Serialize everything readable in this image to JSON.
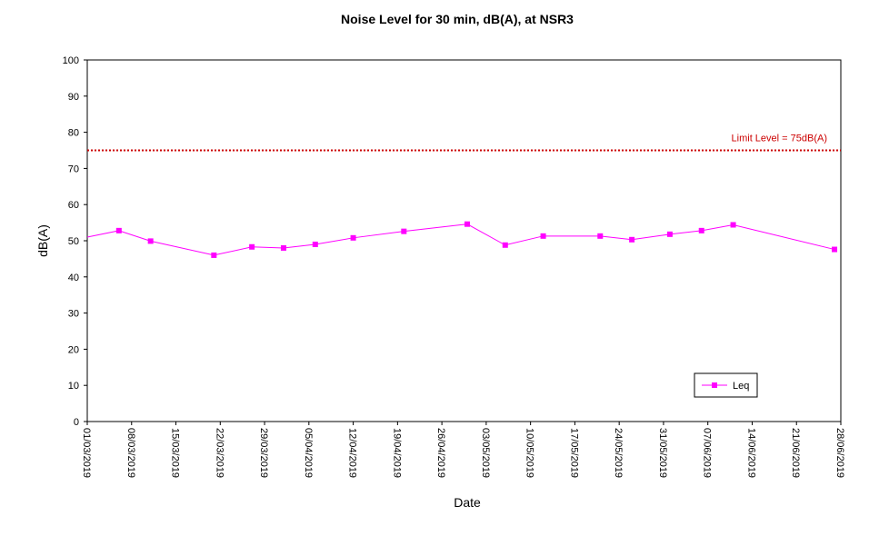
{
  "chart_data": {
    "type": "line",
    "title": "Noise Level for 30 min, dB(A), at NSR3",
    "xlabel": "Date",
    "ylabel": "dB(A)",
    "ylim": [
      0,
      100
    ],
    "yticks": [
      0,
      10,
      20,
      30,
      40,
      50,
      60,
      70,
      80,
      90,
      100
    ],
    "xlim": [
      "2019-03-01",
      "2019-06-28"
    ],
    "xtick_labels": [
      "01/03/2019",
      "08/03/2019",
      "15/03/2019",
      "22/03/2019",
      "29/03/2019",
      "05/04/2019",
      "12/04/2019",
      "19/04/2019",
      "26/04/2019",
      "03/05/2019",
      "10/05/2019",
      "17/05/2019",
      "24/05/2019",
      "31/05/2019",
      "07/06/2019",
      "14/06/2019",
      "21/06/2019",
      "28/06/2019"
    ],
    "grid": false,
    "legend_position": "bottom-right",
    "limit_line": {
      "value": 75,
      "label": "Limit Level  = 75dB(A)",
      "color": "#cc0000"
    },
    "series": [
      {
        "name": "Leq",
        "color": "#ff00ff",
        "marker": "square",
        "x": [
          "2019-03-06",
          "2019-03-11",
          "2019-03-21",
          "2019-03-27",
          "2019-04-01",
          "2019-04-06",
          "2019-04-12",
          "2019-04-20",
          "2019-04-30",
          "2019-05-06",
          "2019-05-12",
          "2019-05-21",
          "2019-05-26",
          "2019-06-01",
          "2019-06-06",
          "2019-06-11",
          "2019-06-27"
        ],
        "y": [
          52.8,
          49.9,
          46.0,
          48.3,
          48.0,
          49.0,
          50.8,
          52.6,
          54.6,
          48.8,
          51.3,
          51.3,
          50.3,
          51.8,
          52.8,
          54.4,
          47.6
        ]
      }
    ],
    "line_start_value": 51.0
  }
}
